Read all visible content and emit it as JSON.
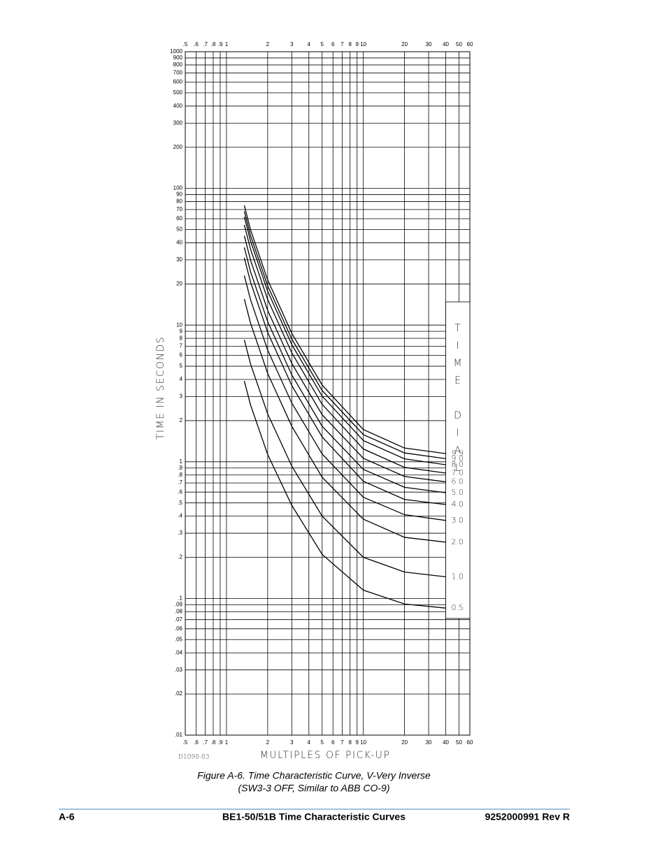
{
  "chart_data": {
    "type": "line",
    "y_label": "TIME IN SECONDS",
    "x_label": "MULTIPLES OF PICK-UP",
    "drawing_number": "D1090-03",
    "legend_title": "TIME DIAL",
    "xscale": "log",
    "yscale": "log",
    "grid": true,
    "color": "#000000",
    "xlim": [
      0.5,
      60
    ],
    "ylim": [
      0.01,
      1000
    ],
    "xticks": [
      {
        "value": 0.5,
        "label": ".5"
      },
      {
        "value": 0.6,
        "label": ".6"
      },
      {
        "value": 0.7,
        "label": ".7"
      },
      {
        "value": 0.8,
        "label": ".8"
      },
      {
        "value": 0.9,
        "label": ".9"
      },
      1,
      2,
      3,
      4,
      5,
      6,
      7,
      8,
      9,
      10,
      20,
      30,
      40,
      50,
      60
    ],
    "yticks": [
      {
        "value": 0.01,
        "label": ".01"
      },
      {
        "value": 0.02,
        "label": ".02"
      },
      {
        "value": 0.03,
        "label": ".03"
      },
      {
        "value": 0.04,
        "label": ".04"
      },
      {
        "value": 0.05,
        "label": ".05"
      },
      {
        "value": 0.06,
        "label": ".06"
      },
      {
        "value": 0.07,
        "label": ".07"
      },
      {
        "value": 0.08,
        "label": ".08"
      },
      {
        "value": 0.09,
        "label": ".09"
      },
      {
        "value": 0.1,
        "label": ".1"
      },
      {
        "value": 0.2,
        "label": ".2"
      },
      {
        "value": 0.3,
        "label": ".3"
      },
      {
        "value": 0.4,
        "label": ".4"
      },
      {
        "value": 0.5,
        "label": ".5"
      },
      {
        "value": 0.6,
        "label": ".6"
      },
      {
        "value": 0.7,
        "label": ".7"
      },
      {
        "value": 0.8,
        "label": ".8"
      },
      {
        "value": 0.9,
        "label": ".9"
      },
      1,
      2,
      3,
      4,
      5,
      6,
      7,
      8,
      9,
      10,
      20,
      30,
      40,
      50,
      60,
      70,
      80,
      90,
      100,
      200,
      300,
      400,
      500,
      600,
      700,
      800,
      900,
      1000
    ],
    "x": [
      1.35,
      1.5,
      2,
      3,
      5,
      10,
      20,
      40
    ],
    "series": [
      {
        "name": "9.9",
        "values": [
          75,
          49.7,
          21.4,
          8.71,
          3.64,
          1.72,
          1.26,
          1.148
        ]
      },
      {
        "name": "9.0",
        "values": [
          68,
          45.1,
          19.4,
          7.9,
          3.32,
          1.58,
          1.16,
          1.054
        ]
      },
      {
        "name": "8.0",
        "values": [
          62,
          41.1,
          17.7,
          7.2,
          3.02,
          1.43,
          1.05,
          0.951
        ]
      },
      {
        "name": "7.0",
        "values": [
          54,
          35.8,
          15.4,
          6.27,
          2.63,
          1.24,
          0.91,
          0.827
        ]
      },
      {
        "name": "6.0",
        "values": [
          45,
          29.8,
          12.8,
          5.25,
          2.21,
          1.06,
          0.78,
          0.713
        ]
      },
      {
        "name": "5.0",
        "values": [
          37,
          24.5,
          10.6,
          4.32,
          1.82,
          0.88,
          0.65,
          0.594
        ]
      },
      {
        "name": "4.0",
        "values": [
          31,
          20.6,
          8.84,
          3.61,
          1.52,
          0.72,
          0.53,
          0.486
        ]
      },
      {
        "name": "3.0",
        "values": [
          23,
          15.3,
          6.56,
          2.69,
          1.14,
          0.55,
          0.41,
          0.372
        ]
      },
      {
        "name": "2.0",
        "values": [
          15.5,
          10.3,
          4.43,
          1.82,
          0.77,
          0.38,
          0.28,
          0.258
        ]
      },
      {
        "name": "1.0",
        "values": [
          7.8,
          5.18,
          2.24,
          0.93,
          0.4,
          0.2,
          0.156,
          0.144
        ]
      },
      {
        "name": "0.5",
        "values": [
          3.9,
          2.6,
          1.13,
          0.48,
          0.21,
          0.115,
          0.091,
          0.085
        ]
      }
    ]
  },
  "caption": [
    "Figure A-6. Time Characteristic Curve, V-Very Inverse",
    "(SW3-3 OFF, Similar to ABB CO-9)"
  ],
  "footer": {
    "left": "A-6",
    "center": "BE1-50/51B Time Characteristic Curves",
    "right": "9252000991 Rev R"
  }
}
